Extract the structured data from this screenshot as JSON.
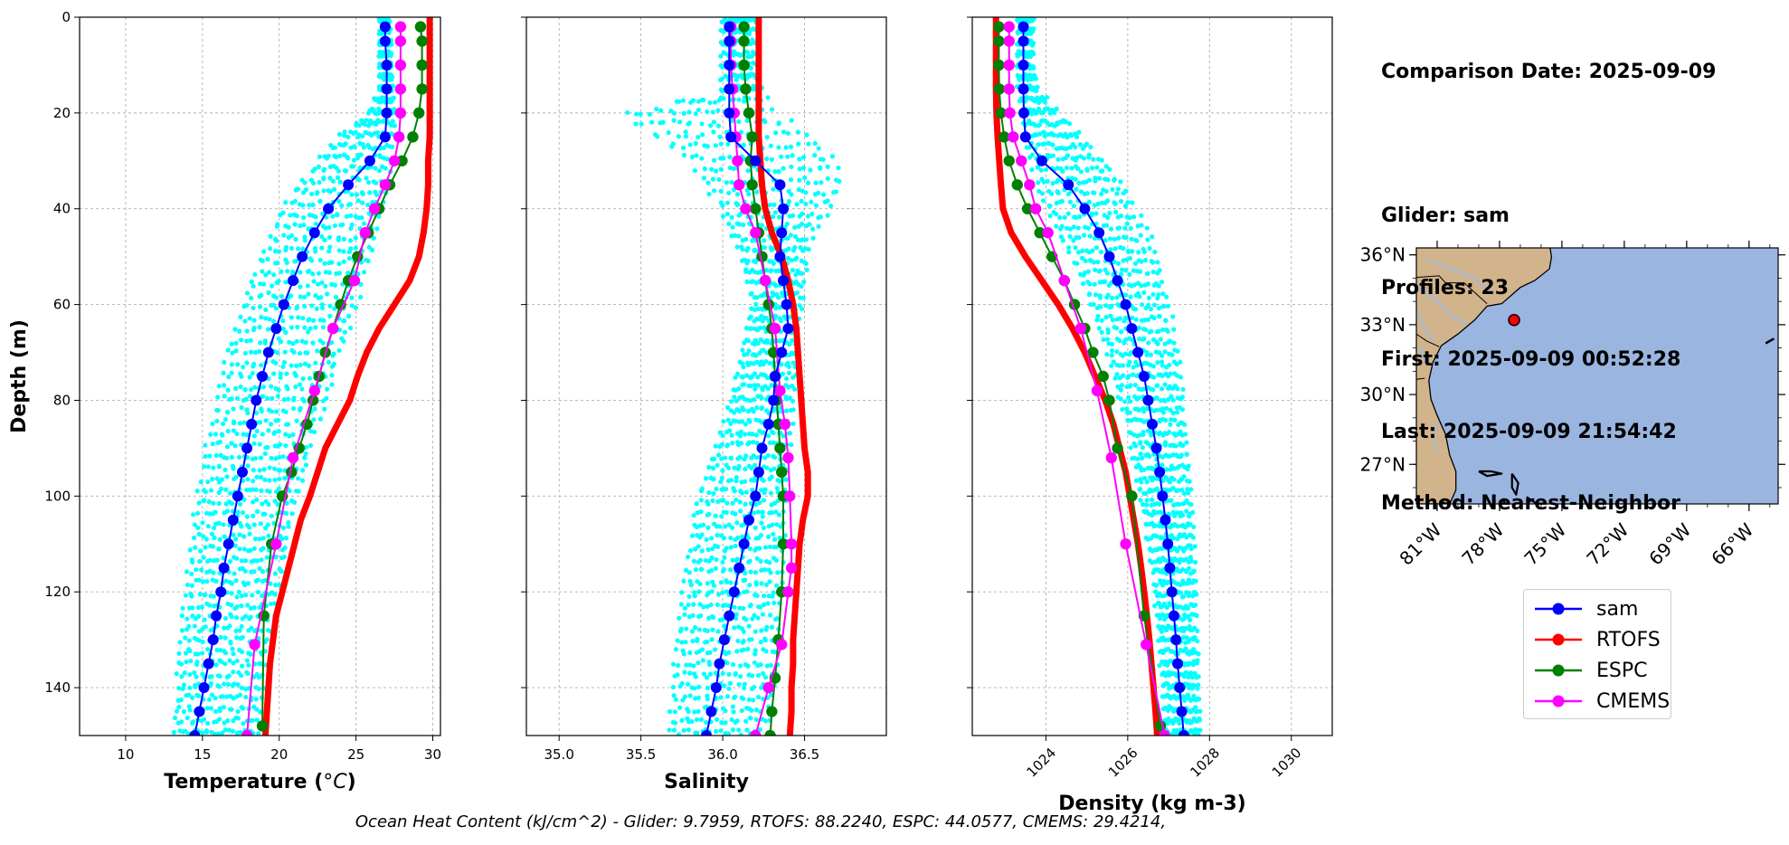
{
  "info": {
    "lines": [
      "Comparison Date: 2025-09-09",
      "",
      "Glider: sam",
      "Profiles: 23",
      "First: 2025-09-09 00:52:28",
      "Last: 2025-09-09 21:54:42",
      "Method: Nearest-Neighbor"
    ]
  },
  "footer": "Ocean Heat Content (kJ/cm^2) - Glider: 9.7959,  RTOFS: 88.2240,  ESPC: 44.0577,  CMEMS: 29.4214,",
  "colors": {
    "sam": "#0000ff",
    "RTOFS": "#ff0000",
    "ESPC": "#008000",
    "CMEMS": "#ff00ff",
    "profiles": "#00ffff",
    "land": "#d2b48c",
    "ocean": "#9ab5e0",
    "grid": "#b0b0b0"
  },
  "legend": [
    {
      "name": "sam",
      "color": "#0000ff"
    },
    {
      "name": "RTOFS",
      "color": "#ff0000"
    },
    {
      "name": "ESPC",
      "color": "#008000"
    },
    {
      "name": "CMEMS",
      "color": "#ff00ff"
    }
  ],
  "map": {
    "lon_ticks": [
      "81°W",
      "78°W",
      "75°W",
      "72°W",
      "69°W",
      "66°W"
    ],
    "lat_ticks": [
      "36°N",
      "33°N",
      "30°N",
      "27°N"
    ],
    "glider_position": {
      "lon": -77.3,
      "lat": 33.2
    }
  },
  "chart_data": [
    {
      "type": "line",
      "xlabel": "Temperature (°C)",
      "ylabel": "Depth (m)",
      "xlim": [
        7,
        30.5
      ],
      "ylim": [
        150,
        0
      ],
      "xticks": [
        10,
        15,
        20,
        25,
        30
      ],
      "yticks": [
        0,
        20,
        40,
        60,
        80,
        100,
        120,
        140
      ],
      "grid": true,
      "depth_levels": [
        2,
        5,
        10,
        15,
        20,
        25,
        30,
        35,
        40,
        45,
        50,
        55,
        60,
        65,
        70,
        75,
        80,
        85,
        90,
        95,
        100,
        105,
        110,
        115,
        120,
        125,
        130,
        135,
        140,
        145,
        150
      ],
      "profile_spread": {
        "min": [
          26.5,
          26.5,
          26.5,
          26.5,
          25.8,
          23.8,
          22.5,
          21.3,
          20.3,
          19.5,
          18.8,
          18.2,
          17.7,
          17.2,
          16.7,
          16.3,
          16.0,
          15.6,
          15.3,
          15.0,
          14.7,
          14.5,
          14.3,
          14.1,
          13.9,
          13.8,
          13.6,
          13.5,
          13.4,
          13.3,
          13.2
        ],
        "max": [
          27.2,
          27.3,
          27.3,
          27.4,
          27.5,
          27.5,
          27.3,
          27.0,
          26.7,
          26.3,
          25.9,
          25.5,
          25.0,
          24.5,
          24.0,
          23.5,
          23.0,
          22.5,
          22.0,
          21.6,
          21.2,
          20.8,
          20.5,
          20.2,
          19.9,
          19.6,
          19.3,
          19.1,
          18.9,
          18.7,
          18.5
        ]
      },
      "series": [
        {
          "name": "sam",
          "x": [
            26.9,
            26.9,
            27.0,
            27.0,
            27.0,
            26.9,
            25.9,
            24.5,
            23.2,
            22.3,
            21.5,
            20.9,
            20.3,
            19.8,
            19.3,
            18.9,
            18.5,
            18.2,
            17.9,
            17.6,
            17.3,
            17.0,
            16.7,
            16.4,
            16.2,
            15.9,
            15.7,
            15.4,
            15.1,
            14.8,
            14.5
          ],
          "depth": [
            2,
            5,
            10,
            15,
            20,
            25,
            30,
            35,
            40,
            45,
            50,
            55,
            60,
            65,
            70,
            75,
            80,
            85,
            90,
            95,
            100,
            105,
            110,
            115,
            120,
            125,
            130,
            135,
            140,
            145,
            150
          ]
        },
        {
          "name": "RTOFS",
          "x": [
            29.8,
            29.8,
            29.8,
            29.8,
            29.8,
            29.8,
            29.7,
            29.7,
            29.6,
            29.4,
            29.1,
            28.5,
            27.5,
            26.5,
            25.7,
            25.1,
            24.6,
            23.8,
            23.0,
            22.5,
            22.0,
            21.4,
            21.0,
            20.6,
            20.2,
            19.8,
            19.6,
            19.4,
            19.3,
            19.2,
            19.1
          ],
          "depth": [
            0,
            5,
            10,
            15,
            20,
            25,
            30,
            35,
            40,
            45,
            50,
            55,
            60,
            65,
            70,
            75,
            80,
            85,
            90,
            95,
            100,
            105,
            110,
            115,
            120,
            125,
            130,
            135,
            140,
            145,
            150
          ]
        },
        {
          "name": "ESPC",
          "x": [
            29.2,
            29.3,
            29.3,
            29.3,
            29.1,
            28.7,
            28.0,
            27.2,
            26.5,
            25.8,
            25.1,
            24.5,
            24.0,
            23.5,
            23.0,
            22.6,
            22.2,
            21.8,
            21.3,
            20.8,
            20.2,
            19.5,
            19.0,
            18.9
          ],
          "depth": [
            2,
            5,
            10,
            15,
            20,
            25,
            30,
            35,
            40,
            45,
            50,
            55,
            60,
            65,
            70,
            75,
            80,
            85,
            90,
            95,
            100,
            110,
            125,
            148
          ]
        },
        {
          "name": "CMEMS",
          "x": [
            27.9,
            27.9,
            27.9,
            27.9,
            27.9,
            27.8,
            27.5,
            26.9,
            26.2,
            25.6,
            24.9,
            23.5,
            22.3,
            20.9,
            19.8,
            18.4,
            17.9
          ],
          "depth": [
            2,
            5,
            10,
            15,
            20,
            25,
            30,
            35,
            40,
            45,
            55,
            65,
            78,
            92,
            110,
            131,
            150
          ]
        }
      ]
    },
    {
      "type": "line",
      "xlabel": "Salinity",
      "xlim": [
        34.8,
        37.0
      ],
      "ylim": [
        150,
        0
      ],
      "xticks": [
        35.0,
        35.5,
        36.0,
        36.5
      ],
      "grid": true,
      "depth_levels": [
        2,
        5,
        10,
        15,
        20,
        25,
        30,
        35,
        40,
        45,
        50,
        55,
        60,
        65,
        70,
        75,
        80,
        85,
        90,
        95,
        100,
        105,
        110,
        115,
        120,
        125,
        130,
        135,
        140,
        145,
        150
      ],
      "profile_spread": {
        "min": [
          35.99,
          35.99,
          35.99,
          35.99,
          35.4,
          35.6,
          35.8,
          35.9,
          36.0,
          36.05,
          36.1,
          36.15,
          36.18,
          36.15,
          36.12,
          36.08,
          36.05,
          36.0,
          35.95,
          35.9,
          35.85,
          35.82,
          35.8,
          35.78,
          35.76,
          35.74,
          35.72,
          35.71,
          35.7,
          35.69,
          35.68
        ],
        "max": [
          36.22,
          36.22,
          36.22,
          36.24,
          36.3,
          36.55,
          36.68,
          36.72,
          36.66,
          36.55,
          36.52,
          36.5,
          36.48,
          36.46,
          36.45,
          36.44,
          36.43,
          36.42,
          36.41,
          36.4,
          36.39,
          36.38,
          36.37,
          36.36,
          36.35,
          36.34,
          36.33,
          36.32,
          36.31,
          36.3,
          36.29
        ]
      },
      "series": [
        {
          "name": "sam",
          "x": [
            36.04,
            36.04,
            36.04,
            36.04,
            36.04,
            36.05,
            36.2,
            36.35,
            36.37,
            36.36,
            36.35,
            36.37,
            36.39,
            36.4,
            36.36,
            36.32,
            36.31,
            36.28,
            36.24,
            36.22,
            36.2,
            36.16,
            36.13,
            36.1,
            36.07,
            36.04,
            36.01,
            35.98,
            35.96,
            35.93,
            35.9
          ],
          "depth": [
            2,
            5,
            10,
            15,
            20,
            25,
            30,
            35,
            40,
            45,
            50,
            55,
            60,
            65,
            70,
            75,
            80,
            85,
            90,
            95,
            100,
            105,
            110,
            115,
            120,
            125,
            130,
            135,
            140,
            145,
            150
          ]
        },
        {
          "name": "RTOFS",
          "x": [
            36.22,
            36.22,
            36.22,
            36.22,
            36.22,
            36.22,
            36.23,
            36.24,
            36.26,
            36.3,
            36.36,
            36.4,
            36.43,
            36.45,
            36.46,
            36.47,
            36.48,
            36.49,
            36.5,
            36.52,
            36.52,
            36.49,
            36.47,
            36.46,
            36.45,
            36.44,
            36.43,
            36.43,
            36.42,
            36.42,
            36.41
          ],
          "depth": [
            0,
            5,
            10,
            15,
            20,
            25,
            30,
            35,
            40,
            45,
            50,
            55,
            60,
            65,
            70,
            75,
            80,
            85,
            90,
            95,
            100,
            105,
            110,
            115,
            120,
            125,
            130,
            135,
            140,
            145,
            150
          ]
        },
        {
          "name": "ESPC",
          "x": [
            36.13,
            36.13,
            36.13,
            36.14,
            36.16,
            36.18,
            36.17,
            36.18,
            36.2,
            36.22,
            36.24,
            36.26,
            36.28,
            36.3,
            36.31,
            36.32,
            36.33,
            36.34,
            36.35,
            36.36,
            36.37,
            36.37,
            36.36,
            36.34,
            36.32,
            36.3,
            36.29
          ],
          "depth": [
            2,
            5,
            10,
            15,
            20,
            25,
            30,
            35,
            40,
            45,
            50,
            55,
            60,
            65,
            70,
            75,
            80,
            85,
            90,
            95,
            100,
            110,
            120,
            130,
            138,
            145,
            150
          ]
        },
        {
          "name": "CMEMS",
          "x": [
            36.05,
            36.05,
            36.05,
            36.06,
            36.07,
            36.08,
            36.09,
            36.1,
            36.14,
            36.2,
            36.26,
            36.32,
            36.35,
            36.38,
            36.4,
            36.41,
            36.42,
            36.42,
            36.4,
            36.36,
            36.28,
            36.2
          ],
          "depth": [
            2,
            5,
            10,
            15,
            20,
            25,
            30,
            35,
            40,
            45,
            55,
            65,
            78,
            85,
            92,
            100,
            110,
            115,
            120,
            131,
            140,
            150
          ]
        }
      ]
    },
    {
      "type": "line",
      "xlabel": "Density (kg m-3)",
      "xlim": [
        1022.2,
        1031.0
      ],
      "ylim": [
        150,
        0
      ],
      "xticks": [
        1024,
        1026,
        1028,
        1030
      ],
      "grid": true,
      "depth_levels": [
        2,
        5,
        10,
        15,
        20,
        25,
        30,
        35,
        40,
        45,
        50,
        55,
        60,
        65,
        70,
        75,
        80,
        85,
        90,
        95,
        100,
        105,
        110,
        115,
        120,
        125,
        130,
        135,
        140,
        145,
        150
      ],
      "profile_spread": {
        "min": [
          1023.3,
          1023.3,
          1023.3,
          1023.3,
          1023.4,
          1023.5,
          1023.6,
          1023.8,
          1024.0,
          1024.3,
          1024.6,
          1024.9,
          1025.1,
          1025.3,
          1025.5,
          1025.7,
          1025.8,
          1026.0,
          1026.1,
          1026.2,
          1026.3,
          1026.4,
          1026.5,
          1026.6,
          1026.65,
          1026.7,
          1026.75,
          1026.8,
          1026.85,
          1026.9,
          1026.95
        ],
        "max": [
          1023.7,
          1023.7,
          1023.7,
          1023.8,
          1024.3,
          1024.9,
          1025.4,
          1025.9,
          1026.2,
          1026.5,
          1026.7,
          1026.85,
          1027.0,
          1027.1,
          1027.2,
          1027.3,
          1027.35,
          1027.4,
          1027.45,
          1027.5,
          1027.55,
          1027.6,
          1027.62,
          1027.64,
          1027.66,
          1027.68,
          1027.7,
          1027.72,
          1027.74,
          1027.76,
          1027.78
        ]
      },
      "series": [
        {
          "name": "sam",
          "x": [
            1023.45,
            1023.45,
            1023.45,
            1023.45,
            1023.46,
            1023.5,
            1023.9,
            1024.55,
            1024.95,
            1025.3,
            1025.55,
            1025.75,
            1025.95,
            1026.1,
            1026.25,
            1026.4,
            1026.5,
            1026.6,
            1026.7,
            1026.78,
            1026.85,
            1026.92,
            1026.98,
            1027.03,
            1027.08,
            1027.13,
            1027.18,
            1027.22,
            1027.27,
            1027.32,
            1027.37
          ],
          "depth": [
            2,
            5,
            10,
            15,
            20,
            25,
            30,
            35,
            40,
            45,
            50,
            55,
            60,
            65,
            70,
            75,
            80,
            85,
            90,
            95,
            100,
            105,
            110,
            115,
            120,
            125,
            130,
            135,
            140,
            145,
            150
          ]
        },
        {
          "name": "RTOFS",
          "x": [
            1022.78,
            1022.78,
            1022.78,
            1022.78,
            1022.79,
            1022.82,
            1022.86,
            1022.9,
            1022.95,
            1023.15,
            1023.5,
            1023.9,
            1024.3,
            1024.65,
            1024.95,
            1025.2,
            1025.45,
            1025.65,
            1025.8,
            1025.95,
            1026.05,
            1026.15,
            1026.25,
            1026.33,
            1026.4,
            1026.47,
            1026.53,
            1026.58,
            1026.63,
            1026.68,
            1026.72
          ],
          "depth": [
            0,
            5,
            10,
            15,
            20,
            25,
            30,
            35,
            40,
            45,
            50,
            55,
            60,
            65,
            70,
            75,
            80,
            85,
            90,
            95,
            100,
            105,
            110,
            115,
            120,
            125,
            130,
            135,
            140,
            145,
            150
          ]
        },
        {
          "name": "ESPC",
          "x": [
            1022.85,
            1022.85,
            1022.85,
            1022.86,
            1022.9,
            1022.98,
            1023.1,
            1023.3,
            1023.55,
            1023.85,
            1024.15,
            1024.45,
            1024.7,
            1024.95,
            1025.15,
            1025.4,
            1025.55,
            1025.75,
            1026.1,
            1026.4,
            1026.8
          ],
          "depth": [
            2,
            5,
            10,
            15,
            20,
            25,
            30,
            35,
            40,
            45,
            50,
            55,
            60,
            65,
            70,
            75,
            80,
            90,
            100,
            125,
            148
          ]
        },
        {
          "name": "CMEMS",
          "x": [
            1023.1,
            1023.1,
            1023.1,
            1023.1,
            1023.12,
            1023.2,
            1023.4,
            1023.6,
            1023.75,
            1024.05,
            1024.45,
            1024.85,
            1025.25,
            1025.6,
            1025.95,
            1026.45,
            1026.9
          ],
          "depth": [
            2,
            5,
            10,
            15,
            20,
            25,
            30,
            35,
            40,
            45,
            55,
            65,
            78,
            92,
            110,
            131,
            150
          ]
        }
      ]
    }
  ]
}
